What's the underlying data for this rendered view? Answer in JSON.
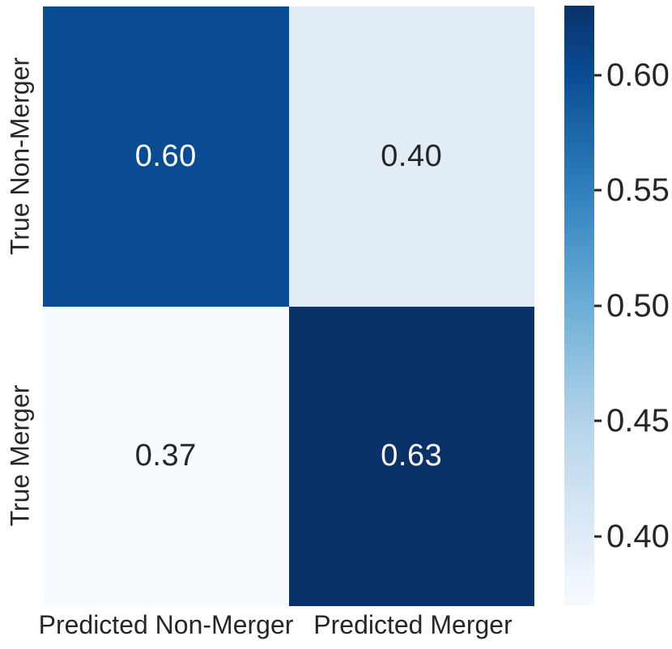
{
  "chart_data": {
    "type": "heatmap",
    "subtype": "confusion-matrix",
    "rows": [
      "True Non-Merger",
      "True Merger"
    ],
    "cols": [
      "Predicted Non-Merger",
      "Predicted Merger"
    ],
    "values": [
      [
        0.6,
        0.4
      ],
      [
        0.37,
        0.63
      ]
    ],
    "cell_labels": [
      [
        "0.60",
        "0.40"
      ],
      [
        "0.37",
        "0.63"
      ]
    ],
    "cell_bg": [
      [
        "#0a4c94",
        "#e2ecf6"
      ],
      [
        "#f7fafe",
        "#0a3269"
      ]
    ],
    "cell_fg": [
      [
        "#ffffff",
        "#262626"
      ],
      [
        "#262626",
        "#ffffff"
      ]
    ],
    "colormap": "Blues",
    "vmin": 0.37,
    "vmax": 0.63,
    "grid": false,
    "background": "#ffffff",
    "text_color": "#262626",
    "colorbar": {
      "position": "right",
      "ticks": [
        {
          "label": "0.60",
          "value": 0.6
        },
        {
          "label": "0.55",
          "value": 0.55
        },
        {
          "label": "0.50",
          "value": 0.5
        },
        {
          "label": "0.45",
          "value": 0.45
        },
        {
          "label": "0.40",
          "value": 0.4
        }
      ],
      "gradient_stops": [
        {
          "pos": 0,
          "color": "#0a3269"
        },
        {
          "pos": 11.5,
          "color": "#0a4c94"
        },
        {
          "pos": 30.8,
          "color": "#3080bd"
        },
        {
          "pos": 50,
          "color": "#6baed6"
        },
        {
          "pos": 69.2,
          "color": "#b4d3e9"
        },
        {
          "pos": 88.5,
          "color": "#e0ecf8"
        },
        {
          "pos": 100,
          "color": "#f7fbff"
        }
      ]
    }
  }
}
